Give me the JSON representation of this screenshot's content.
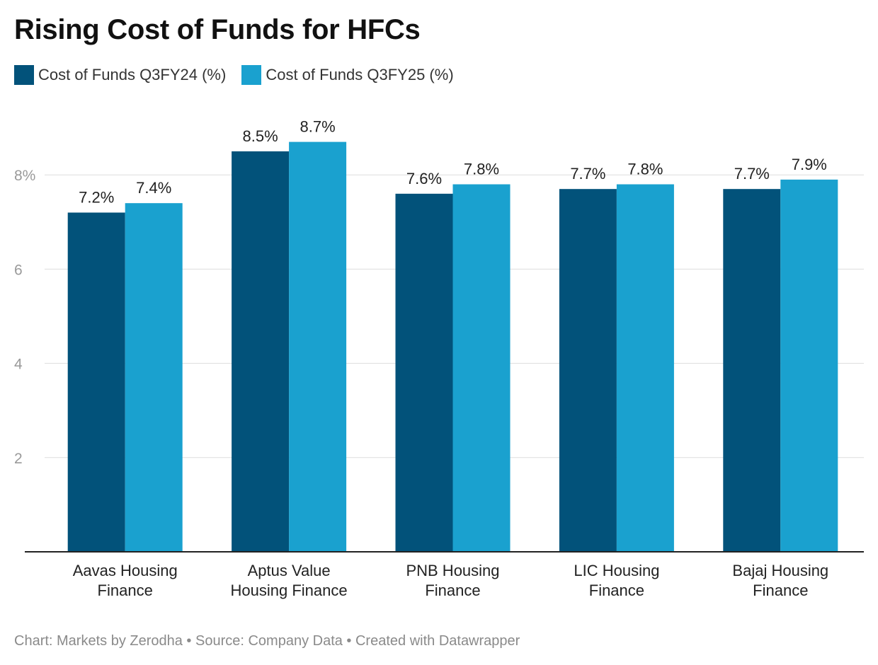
{
  "title": "Rising Cost of Funds for HFCs",
  "footer": "Chart: Markets by Zerodha • Source: Company Data • Created with Datawrapper",
  "colors": {
    "series1": "#02527a",
    "series2": "#1aa1cf",
    "grid": "#dddddd",
    "axis": "#222222",
    "tick": "#9a9a9a"
  },
  "chart_data": {
    "type": "bar",
    "title": "Rising Cost of Funds for HFCs",
    "categories": [
      [
        "Aavas Housing",
        "Finance"
      ],
      [
        "Aptus Value",
        "Housing Finance"
      ],
      [
        "PNB Housing",
        "Finance"
      ],
      [
        "LIC Housing",
        "Finance"
      ],
      [
        "Bajaj Housing",
        "Finance"
      ]
    ],
    "series": [
      {
        "name": "Cost of Funds Q3FY24 (%)",
        "values": [
          7.2,
          8.5,
          7.6,
          7.7,
          7.7
        ],
        "labels": [
          "7.2%",
          "8.5%",
          "7.6%",
          "7.7%",
          "7.7%"
        ]
      },
      {
        "name": "Cost of Funds Q3FY25 (%)",
        "values": [
          7.4,
          8.7,
          7.8,
          7.8,
          7.9
        ],
        "labels": [
          "7.4%",
          "8.7%",
          "7.8%",
          "7.8%",
          "7.9%"
        ]
      }
    ],
    "yticks": [
      2,
      4,
      6,
      8
    ],
    "ytick_labels": [
      "2",
      "4",
      "6",
      "8%"
    ],
    "ylim": [
      0,
      9
    ],
    "grid": true,
    "legend_position": "top-left",
    "xlabel": "",
    "ylabel": ""
  }
}
